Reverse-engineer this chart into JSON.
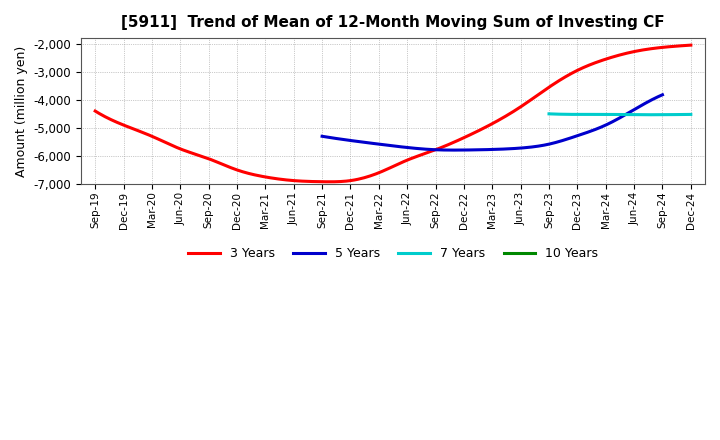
{
  "title": "[5911]  Trend of Mean of 12-Month Moving Sum of Investing CF",
  "ylabel": "Amount (million yen)",
  "ylim": [
    -7000,
    -1800
  ],
  "yticks": [
    -7000,
    -6000,
    -5000,
    -4000,
    -3000,
    -2000
  ],
  "background_color": "#ffffff",
  "grid_color": "#999999",
  "legend_labels": [
    "3 Years",
    "5 Years",
    "7 Years",
    "10 Years"
  ],
  "legend_colors": [
    "#ff0000",
    "#0000cc",
    "#00cccc",
    "#008800"
  ],
  "xtick_labels": [
    "Sep-19",
    "Dec-19",
    "Mar-20",
    "Jun-20",
    "Sep-20",
    "Dec-20",
    "Mar-21",
    "Jun-21",
    "Sep-21",
    "Dec-21",
    "Mar-22",
    "Jun-22",
    "Sep-22",
    "Dec-22",
    "Mar-23",
    "Jun-23",
    "Sep-23",
    "Dec-23",
    "Mar-24",
    "Jun-24",
    "Sep-24",
    "Dec-24"
  ],
  "series_3y": {
    "x_indices": [
      0,
      1,
      2,
      3,
      4,
      5,
      6,
      7,
      8,
      9,
      10,
      11,
      12,
      13,
      14,
      15,
      16,
      17,
      18,
      19,
      20,
      21
    ],
    "values": [
      -4400,
      -4900,
      -5300,
      -5750,
      -6100,
      -6500,
      -6750,
      -6880,
      -6920,
      -6880,
      -6600,
      -6150,
      -5780,
      -5350,
      -4850,
      -4250,
      -3550,
      -2950,
      -2550,
      -2280,
      -2130,
      -2050
    ]
  },
  "series_5y": {
    "x_indices": [
      8,
      9,
      10,
      11,
      12,
      13,
      14,
      15,
      16,
      17,
      18,
      19,
      20
    ],
    "values": [
      -5300,
      -5450,
      -5580,
      -5700,
      -5780,
      -5790,
      -5770,
      -5720,
      -5580,
      -5280,
      -4900,
      -4350,
      -3820
    ]
  },
  "series_7y": {
    "x_indices": [
      16,
      17,
      18,
      19,
      20,
      21
    ],
    "values": [
      -4500,
      -4520,
      -4520,
      -4530,
      -4530,
      -4520
    ]
  },
  "series_10y": {
    "x_indices": [],
    "values": []
  }
}
